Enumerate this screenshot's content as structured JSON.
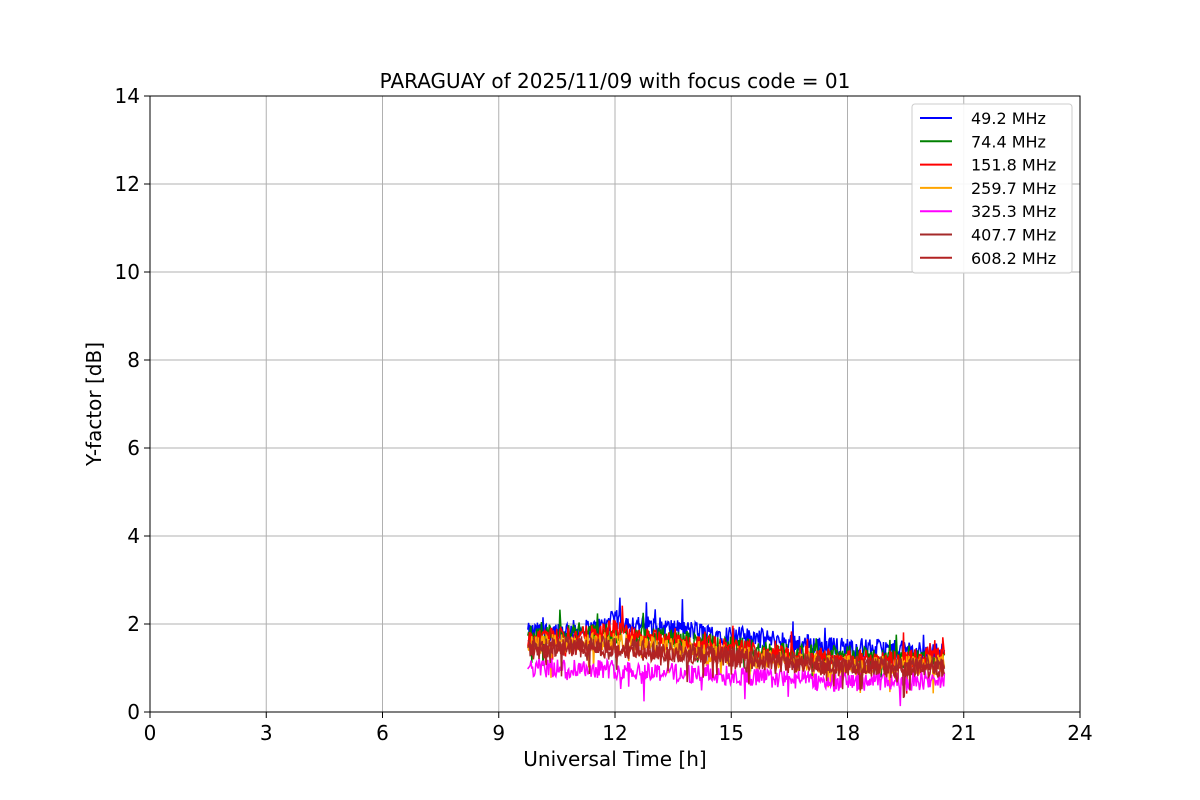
{
  "chart_data": {
    "type": "line",
    "title": "PARAGUAY of 2025/11/09 with focus code = 01",
    "xlabel": "Universal Time [h]",
    "ylabel": "Y-factor [dB]",
    "xlim": [
      0,
      24
    ],
    "ylim": [
      0,
      14
    ],
    "xticks": [
      0,
      3,
      6,
      9,
      12,
      15,
      18,
      21,
      24
    ],
    "yticks": [
      0,
      2,
      4,
      6,
      8,
      10,
      12,
      14
    ],
    "grid": true,
    "legend_position": "top-right",
    "time_range": [
      9.75,
      20.5
    ],
    "series": [
      {
        "name": " 49.2 MHz",
        "color": "#0000ff",
        "x": [
          9.75,
          10.5,
          11.5,
          12.0,
          12.5,
          13.5,
          14.5,
          15.5,
          16.5,
          17.5,
          18.5,
          19.5,
          20.4
        ],
        "values": [
          1.8,
          1.85,
          1.9,
          2.1,
          2.0,
          1.9,
          1.8,
          1.7,
          1.6,
          1.5,
          1.45,
          1.4,
          1.35
        ]
      },
      {
        "name": " 74.4 MHz",
        "color": "#008000",
        "x": [
          9.75,
          10.5,
          11.5,
          12.5,
          13.5,
          14.5,
          15.5,
          16.5,
          17.5,
          18.5,
          19.5,
          20.4
        ],
        "values": [
          1.75,
          1.8,
          1.8,
          1.75,
          1.65,
          1.55,
          1.45,
          1.35,
          1.3,
          1.25,
          1.2,
          1.2
        ]
      },
      {
        "name": "151.8 MHz",
        "color": "#ff0000",
        "x": [
          9.75,
          10.5,
          11.5,
          12.0,
          12.5,
          13.5,
          14.5,
          15.5,
          16.5,
          17.5,
          18.5,
          19.5,
          20.4
        ],
        "values": [
          1.6,
          1.7,
          1.75,
          1.9,
          1.7,
          1.6,
          1.5,
          1.4,
          1.3,
          1.25,
          1.2,
          1.2,
          1.3
        ]
      },
      {
        "name": "259.7 MHz",
        "color": "#ffa500",
        "x": [
          9.75,
          10.5,
          11.5,
          12.5,
          13.5,
          14.5,
          15.5,
          16.5,
          17.5,
          18.5,
          19.5,
          20.4
        ],
        "values": [
          1.5,
          1.55,
          1.6,
          1.55,
          1.45,
          1.35,
          1.25,
          1.15,
          1.1,
          1.05,
          1.05,
          1.1
        ]
      },
      {
        "name": "325.3 MHz",
        "color": "#ff00ff",
        "x": [
          9.75,
          10.5,
          11.5,
          12.5,
          13.5,
          14.5,
          15.5,
          16.5,
          17.5,
          18.5,
          19.5,
          20.4
        ],
        "values": [
          1.0,
          1.0,
          1.0,
          0.95,
          0.9,
          0.85,
          0.8,
          0.75,
          0.7,
          0.7,
          0.7,
          0.75
        ]
      },
      {
        "name": "407.7 MHz",
        "color": "#a52a2a",
        "x": [
          9.75,
          10.5,
          11.5,
          12.5,
          13.5,
          14.5,
          15.5,
          16.5,
          17.5,
          18.5,
          19.5,
          20.4
        ],
        "values": [
          1.45,
          1.5,
          1.5,
          1.45,
          1.35,
          1.3,
          1.2,
          1.15,
          1.1,
          1.05,
          1.05,
          1.05
        ]
      },
      {
        "name": "608.2 MHz",
        "color": "#b22222",
        "x": [
          9.75,
          10.5,
          11.5,
          12.5,
          13.5,
          14.5,
          15.5,
          16.5,
          17.5,
          18.5,
          19.5,
          20.4
        ],
        "values": [
          1.4,
          1.45,
          1.45,
          1.4,
          1.35,
          1.3,
          1.2,
          1.1,
          1.05,
          1.0,
          1.0,
          1.0
        ]
      }
    ]
  }
}
